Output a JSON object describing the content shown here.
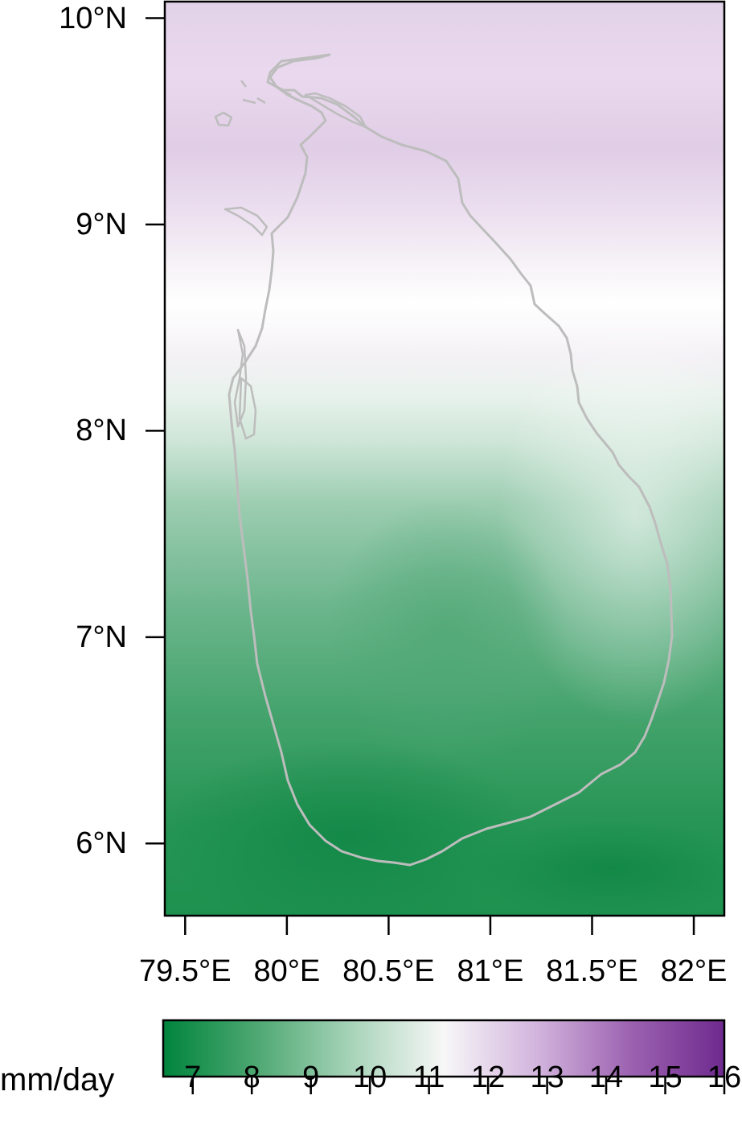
{
  "map": {
    "axes": {
      "x_ticks": [
        {
          "value": 79.5,
          "label": "79.5°E"
        },
        {
          "value": 80.0,
          "label": "80°E"
        },
        {
          "value": 80.5,
          "label": "80.5°E"
        },
        {
          "value": 81.0,
          "label": "81°E"
        },
        {
          "value": 81.5,
          "label": "81.5°E"
        },
        {
          "value": 82.0,
          "label": "82°E"
        }
      ],
      "y_ticks": [
        {
          "value": 10,
          "label": "10°N"
        },
        {
          "value": 9,
          "label": "9°N"
        },
        {
          "value": 8,
          "label": "8°N"
        },
        {
          "value": 7,
          "label": "7°N"
        },
        {
          "value": 6,
          "label": "6°N"
        }
      ],
      "xlim": [
        79.4,
        82.15
      ],
      "ylim": [
        5.65,
        10.08
      ]
    },
    "field_colors": {
      "low": "#1b8a4a",
      "mid": "#f7f7f7",
      "high": "#c9a8d6"
    },
    "coastline_color": "#bdbdbd"
  },
  "colorbar": {
    "unit_label": "mm/day",
    "range": [
      6.5,
      16
    ],
    "ticks": [
      "7",
      "8",
      "9",
      "10",
      "11",
      "12",
      "13",
      "14",
      "15",
      "16"
    ],
    "colors": [
      "#00843d",
      "#4ea872",
      "#a6d3b8",
      "#f7f7f7",
      "#d2b4dd",
      "#9c62b0",
      "#6e2a8e"
    ]
  }
}
